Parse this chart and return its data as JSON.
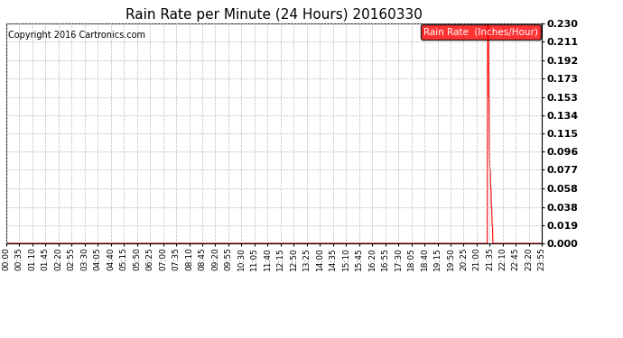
{
  "title": "Rain Rate per Minute (24 Hours) 20160330",
  "copyright": "Copyright 2016 Cartronics.com",
  "legend_label": "Rain Rate  (Inches/Hour)",
  "legend_bg": "#ff0000",
  "legend_text_color": "#ffffff",
  "line_color": "#ff0000",
  "background_color": "#ffffff",
  "grid_color": "#bbbbbb",
  "ylim": [
    0.0,
    0.23
  ],
  "yticks": [
    0.0,
    0.019,
    0.038,
    0.058,
    0.077,
    0.096,
    0.115,
    0.134,
    0.153,
    0.173,
    0.192,
    0.211,
    0.23
  ],
  "total_minutes": 1440,
  "peak_minute": 1295,
  "spike_data": [
    [
      1293,
      0.23
    ],
    [
      1294,
      0.23
    ],
    [
      1295,
      0.23
    ],
    [
      1296,
      0.153
    ],
    [
      1297,
      0.153
    ],
    [
      1298,
      0.096
    ],
    [
      1299,
      0.077
    ],
    [
      1300,
      0.077
    ],
    [
      1301,
      0.058
    ],
    [
      1302,
      0.058
    ],
    [
      1303,
      0.038
    ],
    [
      1304,
      0.038
    ],
    [
      1305,
      0.019
    ],
    [
      1306,
      0.019
    ],
    [
      1307,
      0.0
    ]
  ],
  "xtick_labels": [
    "00:00",
    "00:35",
    "01:10",
    "01:45",
    "02:20",
    "02:55",
    "03:30",
    "04:05",
    "04:40",
    "05:15",
    "05:50",
    "06:25",
    "07:00",
    "07:35",
    "08:10",
    "08:45",
    "09:20",
    "09:55",
    "10:30",
    "11:05",
    "11:40",
    "12:15",
    "12:50",
    "13:25",
    "14:00",
    "14:35",
    "15:10",
    "15:45",
    "16:20",
    "16:55",
    "17:30",
    "18:05",
    "18:40",
    "19:15",
    "19:50",
    "20:25",
    "21:00",
    "21:35",
    "22:10",
    "22:45",
    "23:20",
    "23:55"
  ],
  "title_fontsize": 11,
  "tick_fontsize": 6.5,
  "copyright_fontsize": 7,
  "legend_fontsize": 7.5,
  "ytick_fontsize": 8
}
